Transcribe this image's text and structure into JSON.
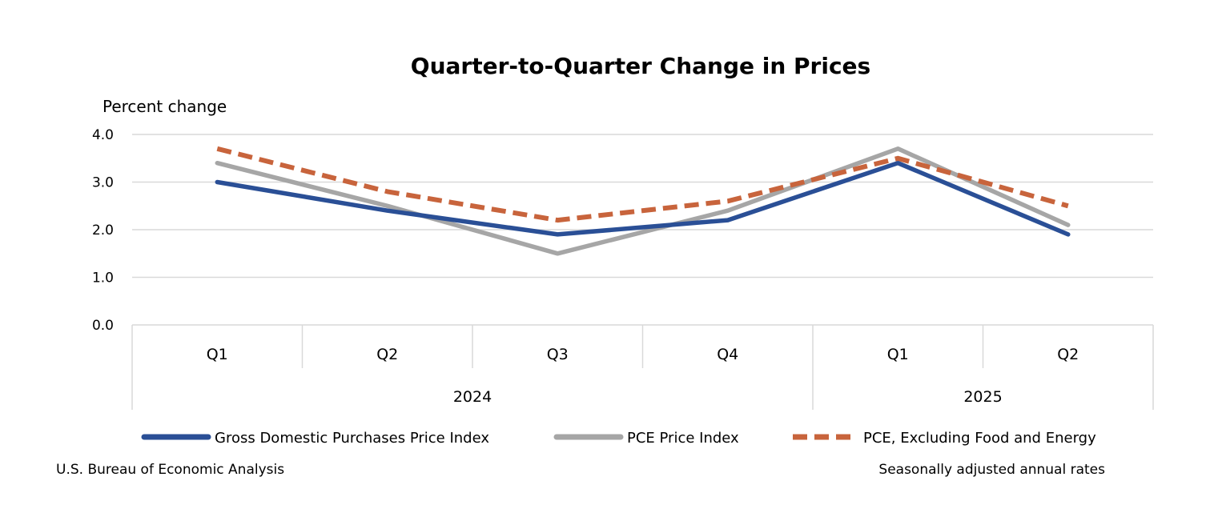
{
  "chart_data": {
    "type": "line",
    "title": "Quarter-to-Quarter Change in Prices",
    "ylabel": "Percent change",
    "xlabel": "",
    "ylim": [
      0,
      4
    ],
    "yticks": [
      "0.0",
      "1.0",
      "2.0",
      "3.0",
      "4.0"
    ],
    "ytick_values": [
      0,
      1,
      2,
      3,
      4
    ],
    "grid": true,
    "legend_position": "bottom",
    "categories": [
      "Q1",
      "Q2",
      "Q3",
      "Q4",
      "Q1",
      "Q2"
    ],
    "groups": [
      {
        "label": "2024",
        "count": 4
      },
      {
        "label": "2025",
        "count": 2
      }
    ],
    "series": [
      {
        "name": "Gross Domestic Purchases Price Index",
        "values": [
          3.0,
          2.4,
          1.9,
          2.2,
          3.4,
          1.9
        ],
        "color": "#2a4f96",
        "dash": "solid"
      },
      {
        "name": "PCE Price Index",
        "values": [
          3.4,
          2.5,
          1.5,
          2.4,
          3.7,
          2.1
        ],
        "color": "#a6a6a6",
        "dash": "solid"
      },
      {
        "name": "PCE, Excluding Food and Energy",
        "values": [
          3.7,
          2.8,
          2.2,
          2.6,
          3.5,
          2.5
        ],
        "color": "#c8643c",
        "dash": "dashed"
      }
    ]
  },
  "footer": {
    "source": "U.S. Bureau of Economic Analysis",
    "note": "Seasonally adjusted annual rates"
  }
}
